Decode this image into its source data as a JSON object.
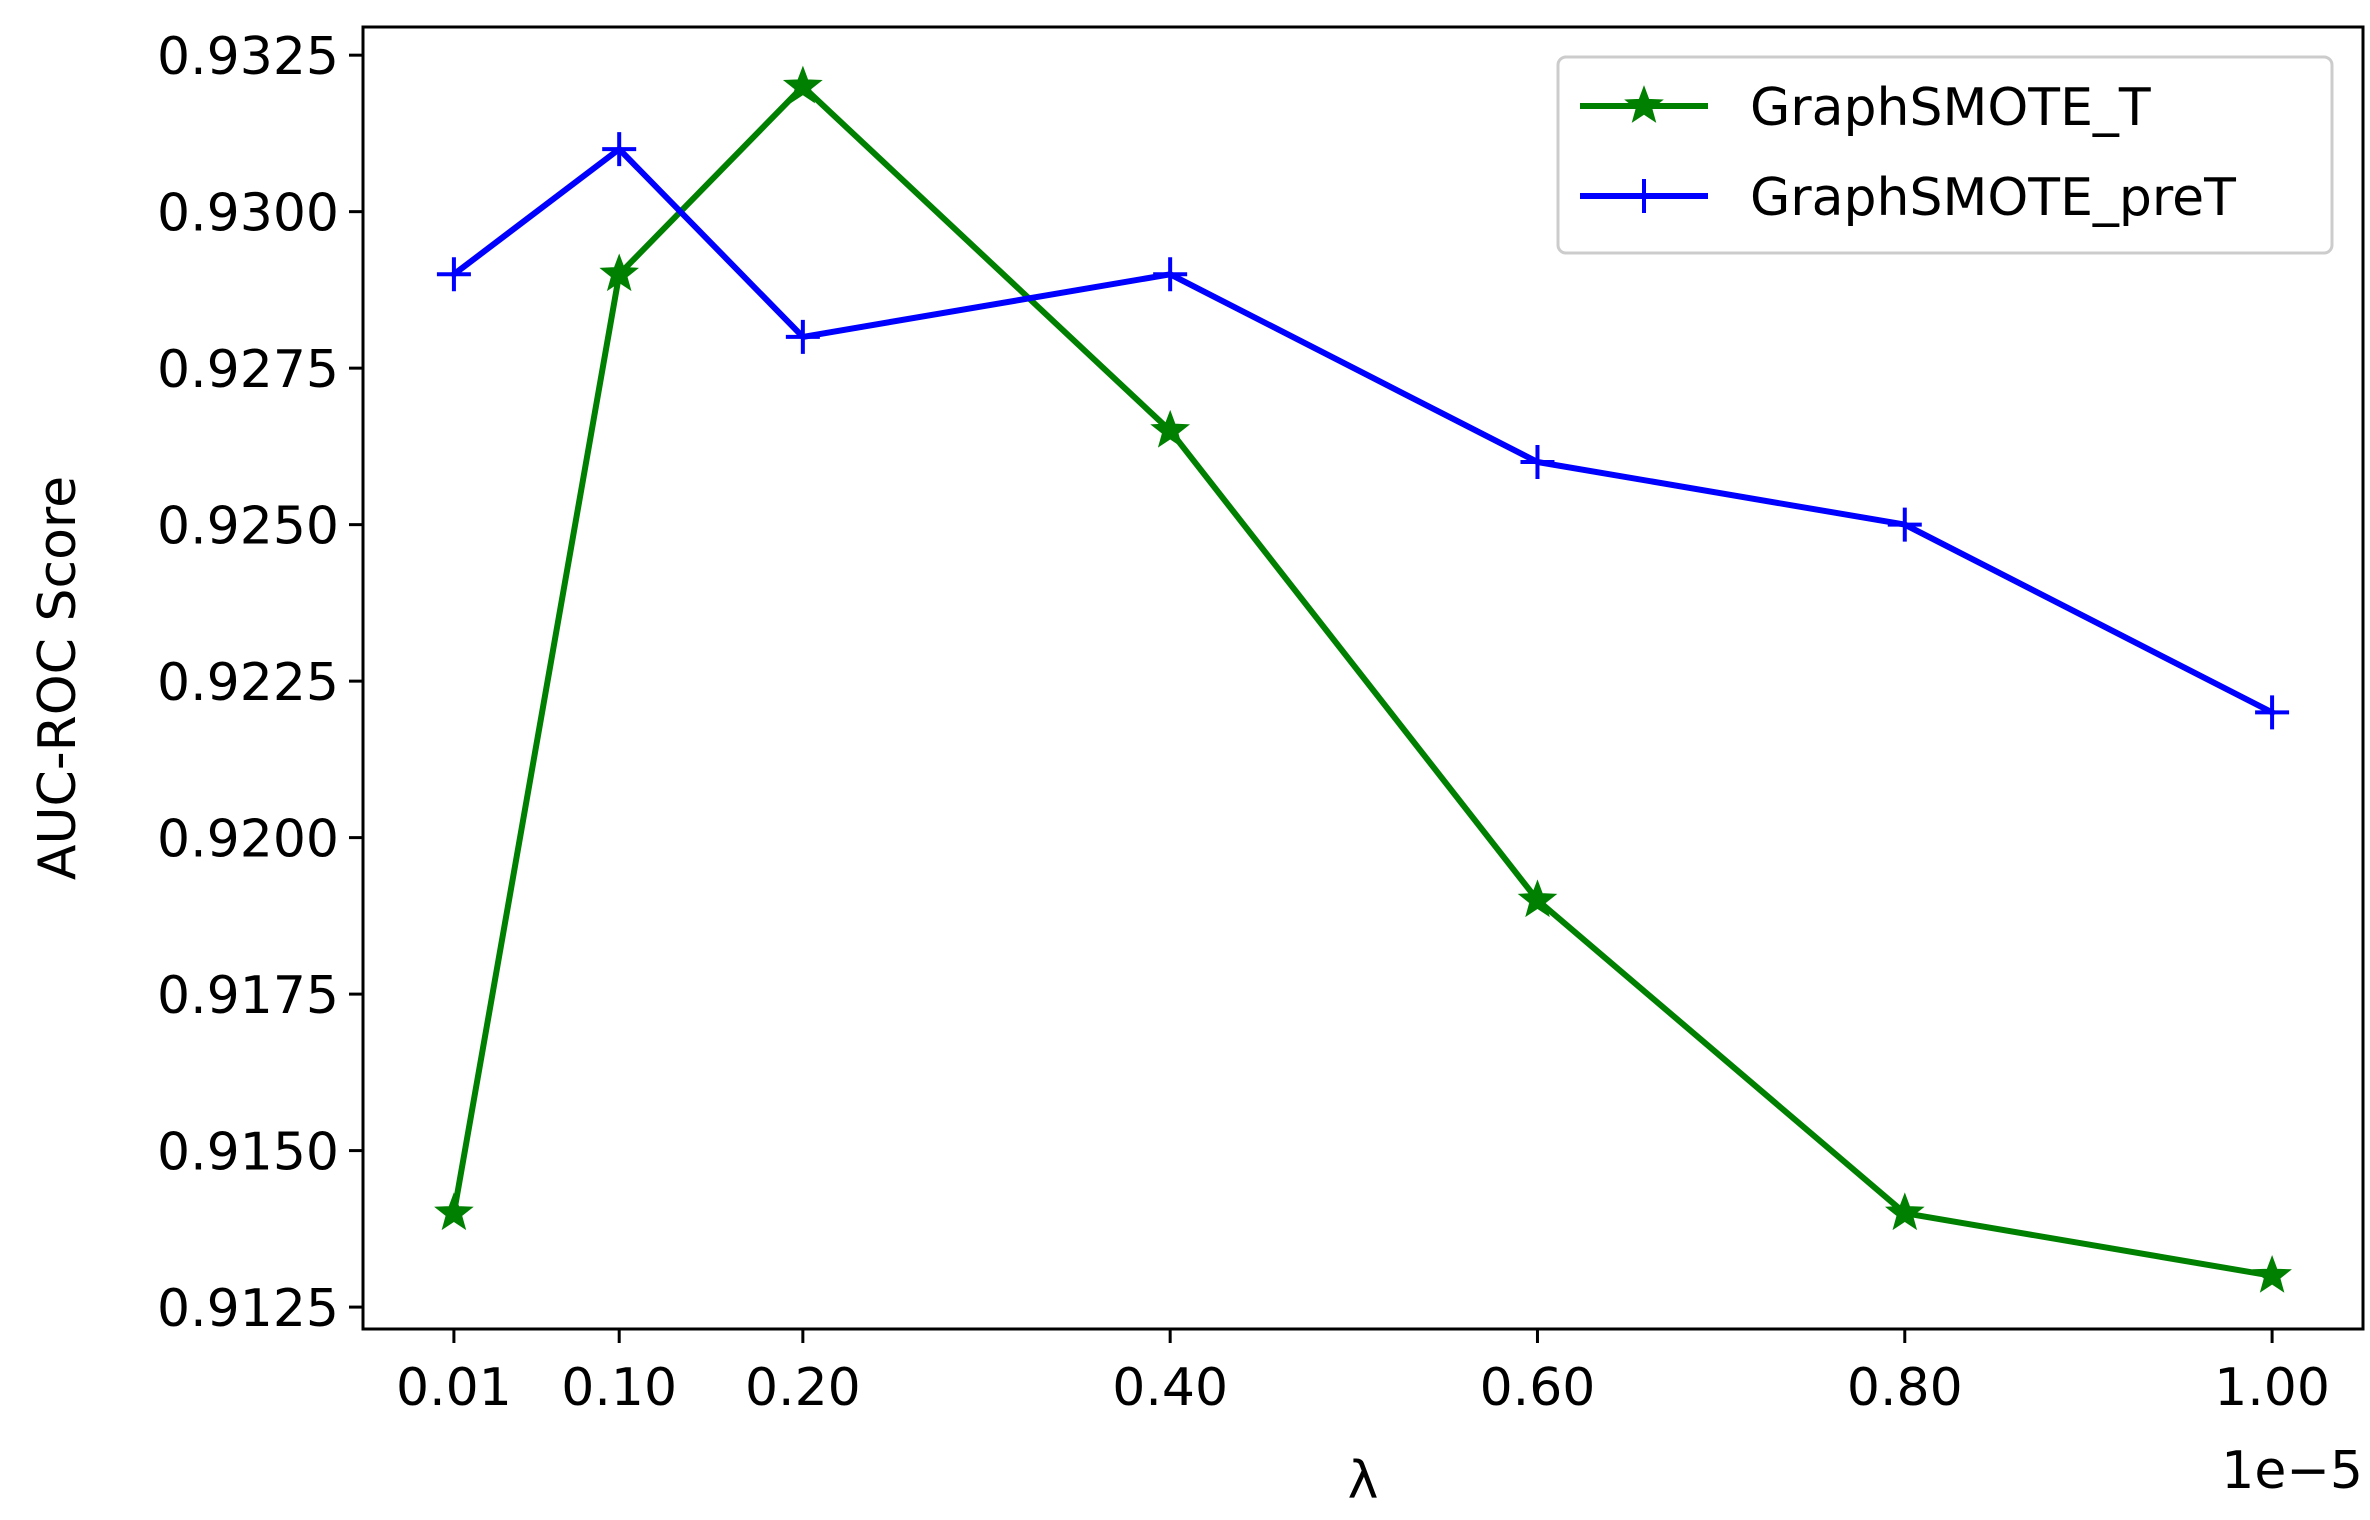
{
  "chart_data": {
    "type": "line",
    "title": "",
    "xlabel": "λ",
    "ylabel": "AUC-ROC Score",
    "x_offset_label": "1e−5",
    "x": [
      0.01,
      0.1,
      0.2,
      0.4,
      0.6,
      0.8,
      1.0
    ],
    "x_tick_labels": [
      "0.01",
      "0.10",
      "0.20",
      "0.40",
      "0.60",
      "0.80",
      "1.00"
    ],
    "y_ticks": [
      0.9125,
      0.915,
      0.9175,
      0.92,
      0.9225,
      0.925,
      0.9275,
      0.93,
      0.9325
    ],
    "y_tick_labels": [
      "0.9125",
      "0.9150",
      "0.9175",
      "0.9200",
      "0.9225",
      "0.9250",
      "0.9275",
      "0.9300",
      "0.9325"
    ],
    "xlim": [
      -0.0395,
      1.0495
    ],
    "ylim": [
      0.91215,
      0.93295
    ],
    "grid": false,
    "legend_position": "top-right",
    "series": [
      {
        "name": "GraphSMOTE_T",
        "color": "#008000",
        "marker": "star",
        "values": [
          0.914,
          0.929,
          0.932,
          0.9265,
          0.919,
          0.914,
          0.913
        ]
      },
      {
        "name": "GraphSMOTE_preT",
        "color": "#0000ff",
        "marker": "plus",
        "values": [
          0.929,
          0.931,
          0.928,
          0.929,
          0.926,
          0.925,
          0.922
        ]
      }
    ]
  }
}
